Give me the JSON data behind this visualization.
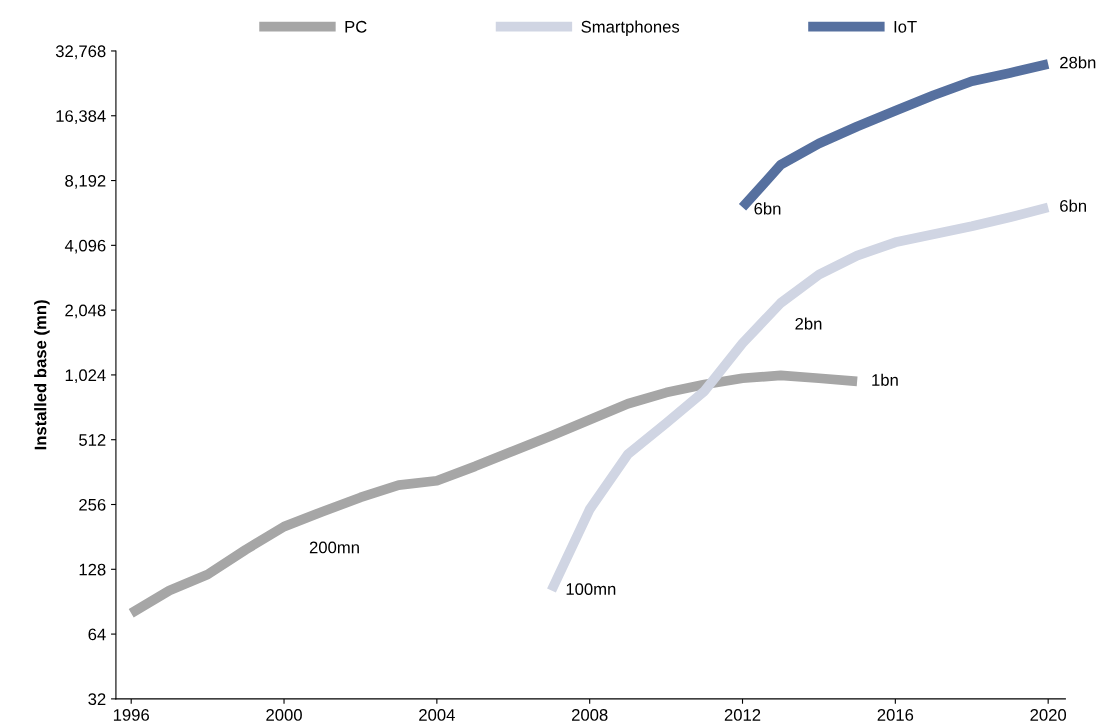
{
  "chart_data": {
    "type": "line",
    "ylabel": "Installed base (mn)",
    "log": "y",
    "grid": false,
    "legend": "top",
    "marker": "none",
    "line_style": "solid",
    "xlim": [
      1995.6,
      2020.45
    ],
    "xticks": [
      1996,
      2000,
      2004,
      2008,
      2012,
      2016,
      2020
    ],
    "ylim": [
      32,
      32768
    ],
    "yticks": [
      32,
      64,
      128,
      256,
      512,
      {
        "value": 1024,
        "label": "1,024"
      },
      {
        "value": 2048,
        "label": "2,048"
      },
      {
        "value": 4096,
        "label": "4,096"
      },
      {
        "value": 8192,
        "label": "8,192"
      },
      {
        "value": 16384,
        "label": "16,384"
      },
      {
        "value": 32768,
        "label": "32,768"
      }
    ],
    "series": [
      {
        "name": "PC",
        "color": "#a6a6a6",
        "x": [
          1996,
          1997,
          1998,
          1999,
          2000,
          2001,
          2002,
          2003,
          2004,
          2005,
          2006,
          2007,
          2008,
          2009,
          2010,
          2011,
          2012,
          2013,
          2014,
          2015
        ],
        "values": [
          80,
          102,
          121,
          158,
          202,
          237,
          276,
          315,
          330,
          385,
          454,
          534,
          634,
          752,
          848,
          925,
          988,
          1018,
          988,
          955
        ]
      },
      {
        "name": "Smartphones",
        "color": "#d0d5e3",
        "x": [
          2007,
          2008,
          2009,
          2010,
          2011,
          2012,
          2013,
          2014,
          2015,
          2016,
          2017,
          2018,
          2019,
          2020
        ],
        "values": [
          102,
          243,
          438,
          610,
          860,
          1437,
          2210,
          2995,
          3670,
          4230,
          4610,
          5020,
          5530,
          6150
        ]
      },
      {
        "name": "IoT",
        "color": "#56709f",
        "x": [
          2012,
          2013,
          2014,
          2015,
          2016,
          2017,
          2018,
          2019,
          2020
        ],
        "values": [
          6150,
          9690,
          12170,
          14600,
          17300,
          20400,
          23700,
          25900,
          28500
        ]
      }
    ],
    "annotations": [
      {
        "text": "200mn",
        "x": 2000,
        "y": 202
      },
      {
        "text": "100mn",
        "x": 2007,
        "y": 102
      },
      {
        "text": "2bn",
        "x": 2013,
        "y": 2210
      },
      {
        "text": "1bn",
        "x": 2015,
        "y": 955
      },
      {
        "text": "6bn",
        "x": 2012,
        "y": 6150
      },
      {
        "text": "6bn",
        "x": 2020,
        "y": 6150
      },
      {
        "text": "28bn",
        "x": 2020,
        "y": 28500
      }
    ]
  }
}
